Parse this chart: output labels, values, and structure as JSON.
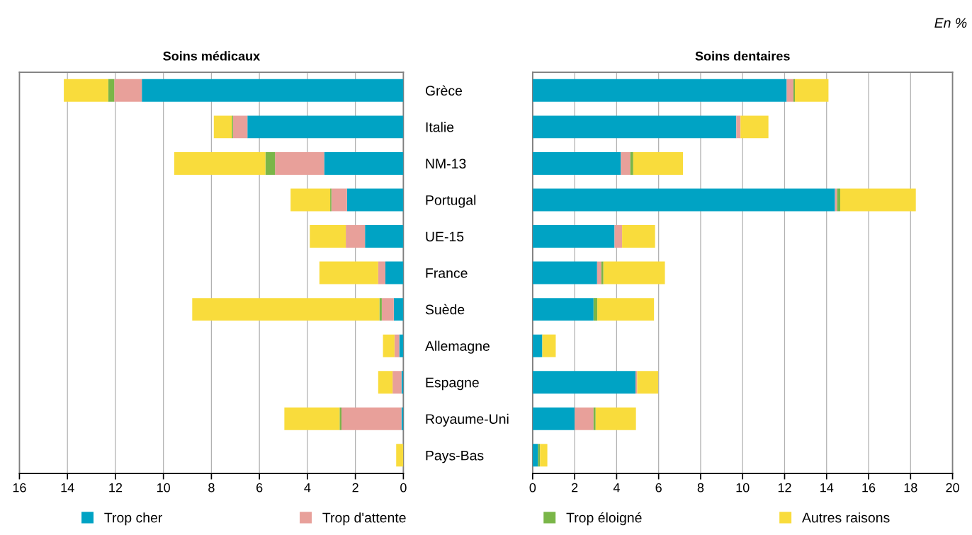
{
  "chart_data": [
    {
      "type": "bar",
      "orientation": "horizontal",
      "stacked": true,
      "title": "Soins médicaux",
      "categories": [
        "Grèce",
        "Italie",
        "NM-13",
        "Portugal",
        "UE-15",
        "France",
        "Suède",
        "Allemagne",
        "Espagne",
        "Royaume-Uni",
        "Pays-Bas"
      ],
      "series": [
        {
          "name": "Trop cher",
          "color": "#00a3c4",
          "values": [
            10.9,
            6.5,
            3.3,
            2.35,
            1.6,
            0.75,
            0.4,
            0.17,
            0.08,
            0.08,
            0
          ]
        },
        {
          "name": "Trop d'attente",
          "color": "#e8a09a",
          "values": [
            1.15,
            0.6,
            2.05,
            0.65,
            0.8,
            0.3,
            0.5,
            0.2,
            0.37,
            2.5,
            0
          ]
        },
        {
          "name": "Trop éloigné",
          "color": "#7ab648",
          "values": [
            0.25,
            0.05,
            0.4,
            0.05,
            0,
            0,
            0.1,
            0,
            0,
            0.08,
            0
          ]
        },
        {
          "name": "Autres raisons",
          "color": "#f9dc3c",
          "values": [
            1.85,
            0.75,
            3.8,
            1.65,
            1.5,
            2.45,
            7.8,
            0.48,
            0.6,
            2.3,
            0.3
          ]
        }
      ],
      "xlim": [
        16,
        0
      ],
      "xticks": [
        16,
        14,
        12,
        10,
        8,
        6,
        4,
        2,
        0
      ],
      "grid": "x",
      "legend": "bottom"
    },
    {
      "type": "bar",
      "orientation": "horizontal",
      "stacked": true,
      "title": "Soins dentaires",
      "categories": [
        null,
        null,
        null,
        null,
        null,
        null,
        null,
        null,
        null,
        null,
        null
      ],
      "series": [
        {
          "color": "#00a3c4",
          "values": [
            12.1,
            9.7,
            4.2,
            14.4,
            3.9,
            3.07,
            2.9,
            0.46,
            4.9,
            2.0,
            0.25
          ]
        },
        {
          "color": "#e8a09a",
          "values": [
            0.32,
            0.2,
            0.45,
            0.1,
            0.36,
            0.2,
            0,
            0,
            0.08,
            0.9,
            0
          ]
        },
        {
          "color": "#7ab648",
          "values": [
            0.07,
            0,
            0.14,
            0.15,
            0,
            0.1,
            0.18,
            0,
            0,
            0.1,
            0.1
          ]
        },
        {
          "color": "#f9dc3c",
          "values": [
            1.6,
            1.33,
            2.37,
            3.6,
            1.57,
            2.93,
            2.7,
            0.64,
            1.0,
            1.92,
            0.35
          ]
        }
      ],
      "xlim": [
        0,
        20
      ],
      "xticks": [
        0,
        2,
        4,
        6,
        8,
        10,
        12,
        14,
        16,
        18,
        20
      ],
      "grid": "x",
      "tick_labels": "x",
      "annotations": [
        "En %"
      ]
    }
  ]
}
